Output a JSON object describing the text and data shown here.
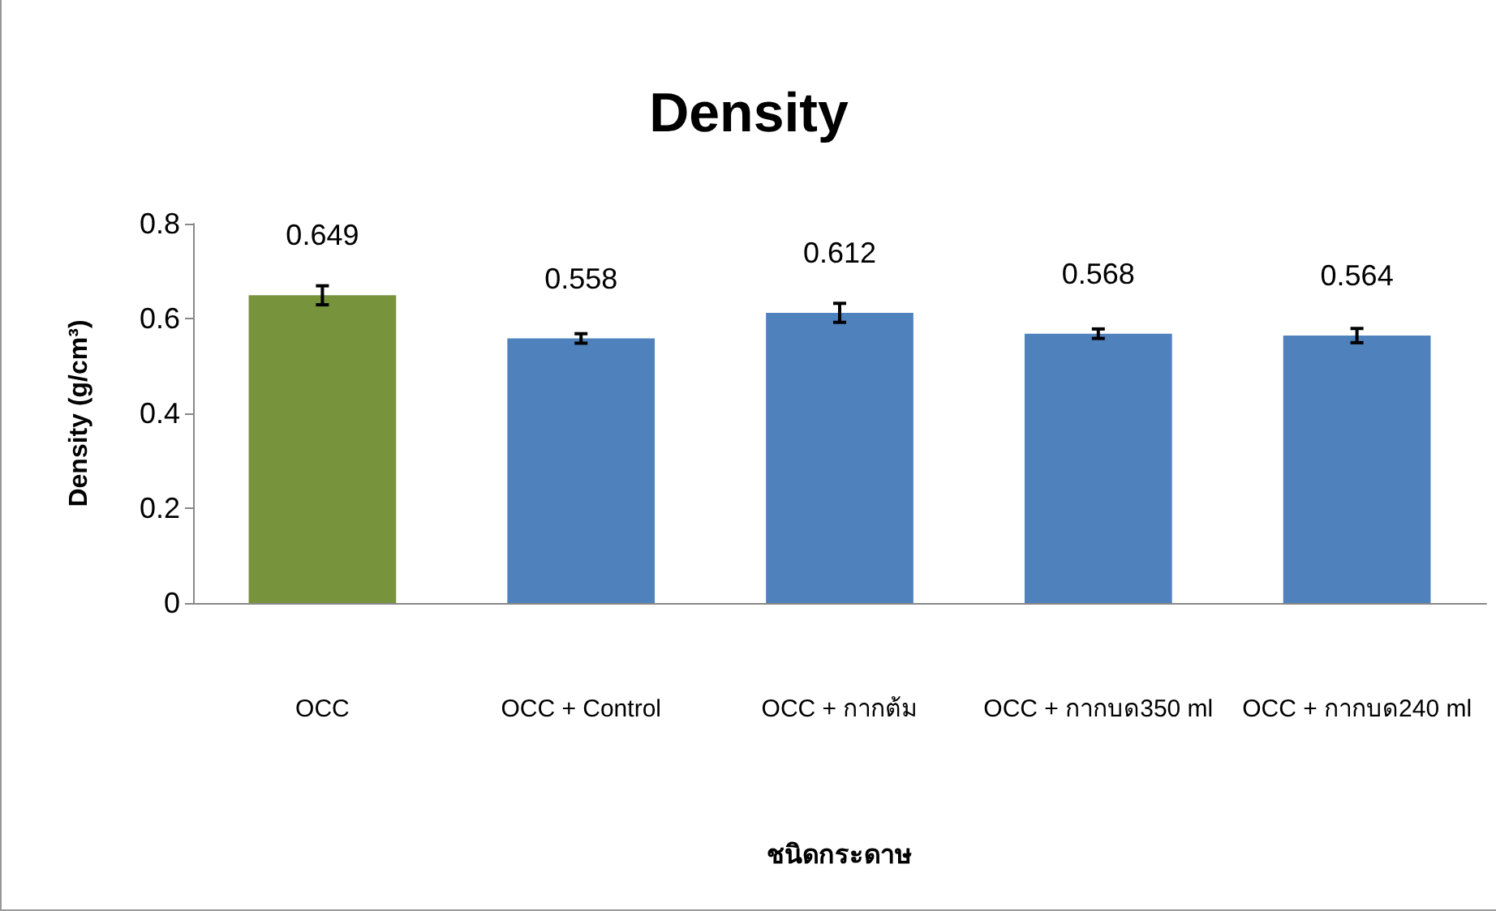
{
  "chart_data": {
    "type": "bar",
    "title": "Density",
    "xlabel": "ชนิดกระดาษ",
    "ylabel": "Density (g/cm³)",
    "categories": [
      "OCC",
      "OCC + Control",
      "OCC + กากต้ม",
      "OCC + กากบด350 ml",
      "OCC + กากบด240 ml"
    ],
    "values": [
      0.649,
      0.558,
      0.612,
      0.568,
      0.564
    ],
    "colors": [
      "#77933c",
      "#4f81bd",
      "#4f81bd",
      "#4f81bd",
      "#4f81bd"
    ],
    "errors": [
      0.02,
      0.01,
      0.02,
      0.01,
      0.015
    ],
    "ylim": [
      0,
      0.8
    ],
    "yticks": [
      0,
      0.2,
      0.4,
      0.6,
      0.8
    ],
    "grid": false,
    "data_labels": true
  }
}
